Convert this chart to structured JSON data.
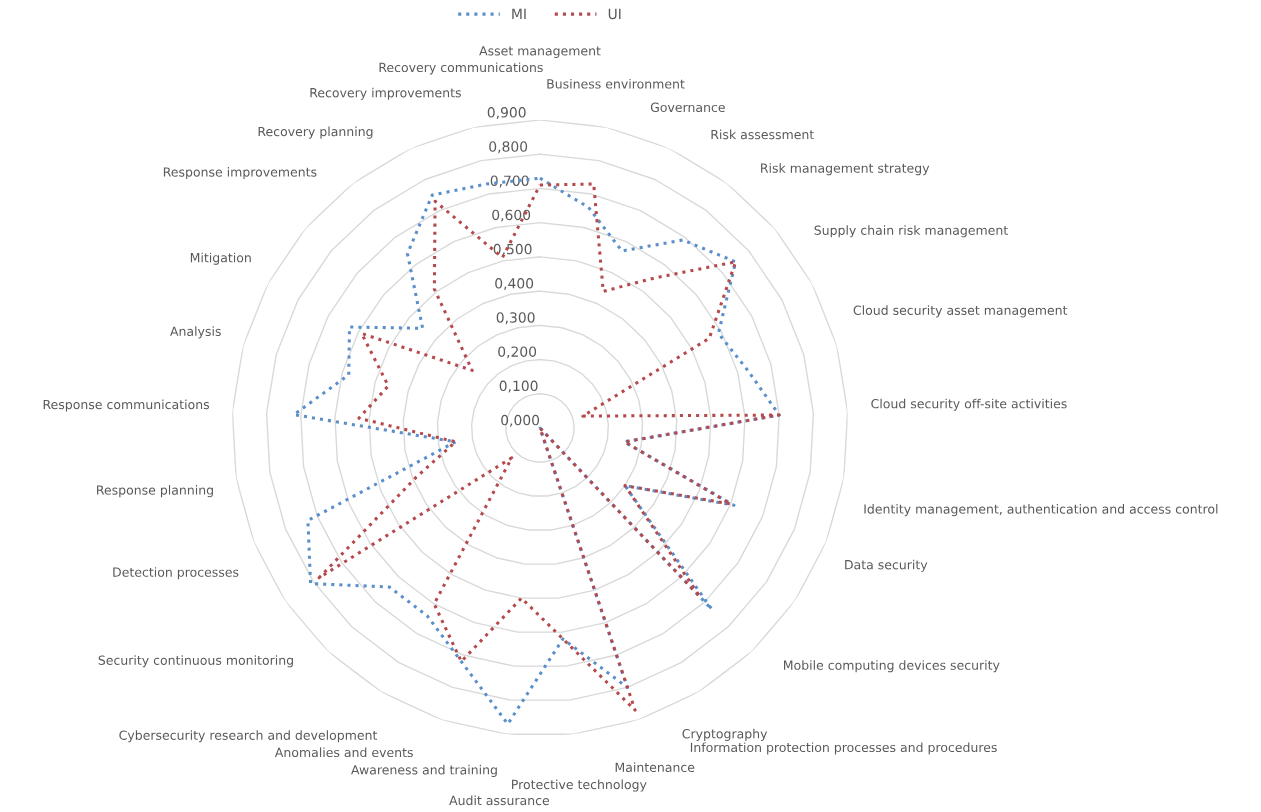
{
  "chart_data": {
    "type": "radar",
    "categories": [
      "Asset management",
      "Business environment",
      "Governance",
      "Risk assessment",
      "Risk management strategy",
      "Supply chain risk management",
      "Cloud security asset management",
      "Cloud security off-site activities",
      "Identity management, authentication and access control",
      "Data security",
      "Mobile computing devices security",
      "Information protection processes and procedures",
      "Cryptography",
      "Maintenance",
      "Protective technology",
      "Audit assurance",
      "Awareness and training",
      "Anomalies and events",
      "Cybersecurity research and development",
      "Security continuous monitoring",
      "Detection processes",
      "Response planning",
      "Response communications",
      "Analysis",
      "Mitigation",
      "Response improvements",
      "Recovery planning",
      "Recovery improvements",
      "Recovery communications"
    ],
    "series": [
      {
        "name": "MI",
        "color": "#5b8fc9",
        "values": [
          0.73,
          0.66,
          0.57,
          0.69,
          0.75,
          0.59,
          0.63,
          0.7,
          0.25,
          0.61,
          0.3,
          0.73,
          0,
          0.8,
          0.62,
          0.87,
          0.72,
          0.64,
          0.64,
          0.81,
          0.73,
          0.25,
          0.72,
          0.58,
          0.63,
          0.45,
          0.64,
          0.75,
          0.73
        ]
      },
      {
        "name": "UI",
        "color": "#b5494b",
        "values": [
          0.71,
          0.73,
          0.44,
          0.55,
          0.75,
          0.56,
          0.13,
          0.7,
          0.25,
          0.6,
          0.3,
          0.68,
          0,
          0.87,
          0.62,
          0.5,
          0.72,
          0.6,
          0.12,
          0.78,
          0.39,
          0.25,
          0.53,
          0.46,
          0.59,
          0.26,
          0.51,
          0.73,
          0.51
        ]
      }
    ],
    "ylim": [
      0,
      0.9
    ],
    "yticks": [
      {
        "value": 0,
        "label": "0,000"
      },
      {
        "value": 0.1,
        "label": "0,100"
      },
      {
        "value": 0.2,
        "label": "0,200"
      },
      {
        "value": 0.3,
        "label": "0,300"
      },
      {
        "value": 0.4,
        "label": "0,400"
      },
      {
        "value": 0.5,
        "label": "0,500"
      },
      {
        "value": 0.6,
        "label": "0,600"
      },
      {
        "value": 0.7,
        "label": "0,700"
      },
      {
        "value": 0.8,
        "label": "0,800"
      },
      {
        "value": 0.9,
        "label": "0,900"
      }
    ],
    "grid": "y",
    "legend": "top",
    "line_style": "dotted",
    "marker": "none"
  }
}
